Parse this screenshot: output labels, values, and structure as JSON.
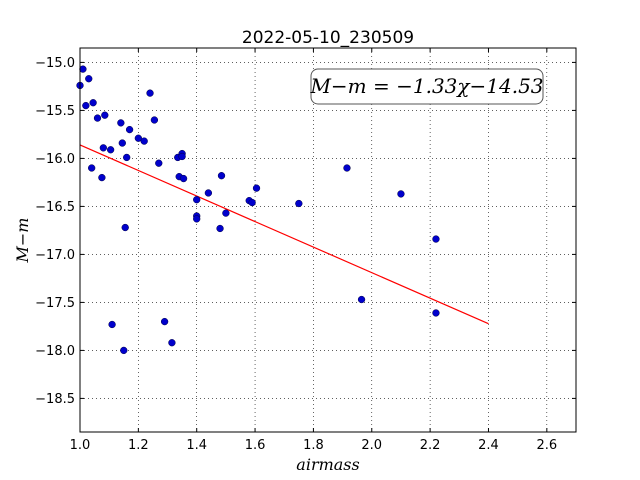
{
  "chart_data": {
    "type": "scatter",
    "title": "2022-05-10_230509",
    "xlabel": "airmass",
    "ylabel": "M−m",
    "xlim": [
      1.0,
      2.7
    ],
    "ylim": [
      -18.85,
      -14.85
    ],
    "x_ticks": [
      1.0,
      1.2,
      1.4,
      1.6,
      1.8,
      2.0,
      2.2,
      2.4,
      2.6
    ],
    "x_tick_labels": [
      "1.0",
      "1.2",
      "1.4",
      "1.6",
      "1.8",
      "2.0",
      "2.2",
      "2.4",
      "2.6"
    ],
    "y_ticks": [
      -15.0,
      -15.5,
      -16.0,
      -16.5,
      -17.0,
      -17.5,
      -18.0,
      -18.5
    ],
    "y_tick_labels": [
      "−15.0",
      "−15.5",
      "−16.0",
      "−16.5",
      "−17.0",
      "−17.5",
      "−18.0",
      "−18.5"
    ],
    "grid": true,
    "annotation": "M−m = −1.33χ−14.53",
    "fit": {
      "slope": -1.33,
      "intercept": -14.53,
      "x_range": [
        1.0,
        2.4
      ],
      "color": "#ff0000"
    },
    "point_color": "#0000cc",
    "points": [
      [
        1.0,
        -15.24
      ],
      [
        1.01,
        -15.07
      ],
      [
        1.02,
        -15.45
      ],
      [
        1.03,
        -15.17
      ],
      [
        1.04,
        -16.1
      ],
      [
        1.045,
        -15.42
      ],
      [
        1.06,
        -15.58
      ],
      [
        1.075,
        -16.2
      ],
      [
        1.08,
        -15.89
      ],
      [
        1.085,
        -15.55
      ],
      [
        1.105,
        -15.91
      ],
      [
        1.11,
        -17.73
      ],
      [
        1.14,
        -15.63
      ],
      [
        1.145,
        -15.84
      ],
      [
        1.15,
        -18.0
      ],
      [
        1.155,
        -16.72
      ],
      [
        1.16,
        -15.99
      ],
      [
        1.17,
        -15.7
      ],
      [
        1.2,
        -15.79
      ],
      [
        1.22,
        -15.82
      ],
      [
        1.24,
        -15.32
      ],
      [
        1.255,
        -15.6
      ],
      [
        1.27,
        -16.05
      ],
      [
        1.29,
        -17.7
      ],
      [
        1.315,
        -17.92
      ],
      [
        1.335,
        -15.99
      ],
      [
        1.34,
        -16.19
      ],
      [
        1.35,
        -15.95
      ],
      [
        1.35,
        -15.98
      ],
      [
        1.355,
        -16.21
      ],
      [
        1.4,
        -16.43
      ],
      [
        1.4,
        -16.6
      ],
      [
        1.4,
        -16.63
      ],
      [
        1.44,
        -16.36
      ],
      [
        1.48,
        -16.73
      ],
      [
        1.485,
        -16.18
      ],
      [
        1.5,
        -16.57
      ],
      [
        1.58,
        -16.44
      ],
      [
        1.59,
        -16.46
      ],
      [
        1.605,
        -16.31
      ],
      [
        1.75,
        -16.47
      ],
      [
        1.915,
        -16.1
      ],
      [
        1.965,
        -17.47
      ],
      [
        2.1,
        -16.37
      ],
      [
        2.22,
        -16.84
      ],
      [
        2.22,
        -17.61
      ]
    ]
  }
}
